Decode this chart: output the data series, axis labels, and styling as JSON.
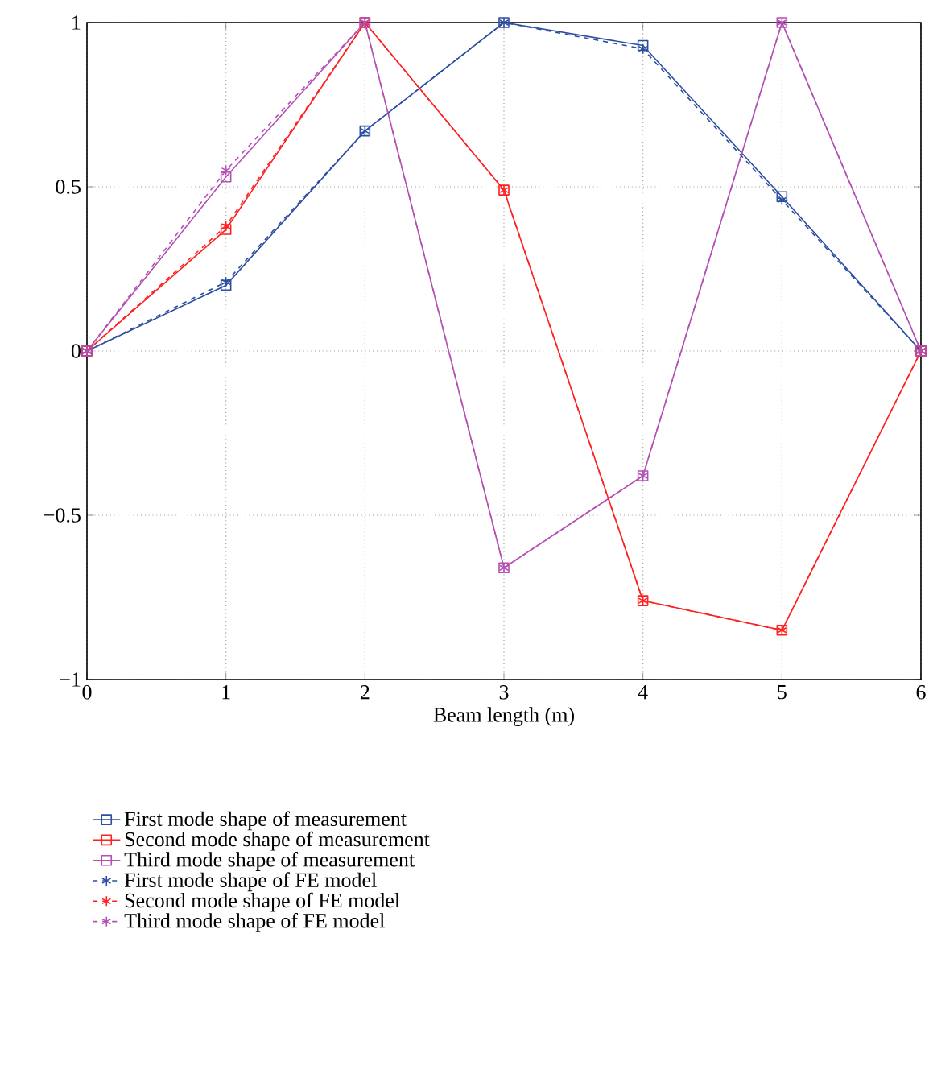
{
  "chart_data": {
    "type": "line",
    "xlabel": "Beam length (m)",
    "x": [
      0,
      1,
      2,
      3,
      4,
      5,
      6
    ],
    "series": [
      {
        "name": "First mode shape of measurement",
        "color": "#2b4ea2",
        "marker": "square",
        "line_style": "solid",
        "values": [
          0,
          0.2,
          0.67,
          1,
          0.93,
          0.47,
          0
        ]
      },
      {
        "name": "Second mode shape of measurement",
        "color": "#ff2020",
        "marker": "square",
        "line_style": "solid",
        "values": [
          0,
          0.37,
          1,
          0.49,
          -0.76,
          -0.85,
          0
        ]
      },
      {
        "name": "Third mode shape of measurement",
        "color": "#b44fb4",
        "marker": "square",
        "line_style": "solid",
        "values": [
          0,
          0.53,
          1,
          -0.66,
          -0.38,
          1,
          0
        ]
      },
      {
        "name": "First mode shape of FE model",
        "color": "#2b4ea2",
        "marker": "cross",
        "line_style": "dashed",
        "values": [
          0,
          0.21,
          0.67,
          1,
          0.92,
          0.46,
          0
        ]
      },
      {
        "name": "Second mode shape of FE model",
        "color": "#ff2020",
        "marker": "cross",
        "line_style": "dashed",
        "values": [
          0,
          0.38,
          1,
          0.49,
          -0.76,
          -0.85,
          0
        ]
      },
      {
        "name": "Third mode shape of FE model",
        "color": "#b44fb4",
        "marker": "cross",
        "line_style": "dashed",
        "values": [
          0,
          0.55,
          1,
          -0.66,
          -0.38,
          1,
          0
        ]
      }
    ],
    "xlim": [
      0,
      6
    ],
    "ylim": [
      -1,
      1
    ],
    "xticks": [
      0,
      1,
      2,
      3,
      4,
      5,
      6
    ],
    "yticks": [
      {
        "value": -1,
        "label": "−1"
      },
      {
        "value": -0.5,
        "label": "−0.5"
      },
      0,
      0.5,
      1
    ],
    "grid": true,
    "legend": "bottom"
  }
}
